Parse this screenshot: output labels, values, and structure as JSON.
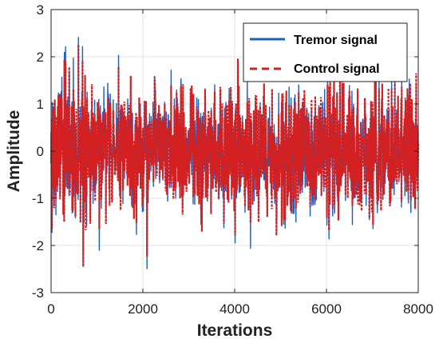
{
  "chart_data": {
    "type": "line",
    "title": "",
    "xlabel": "Iterations",
    "ylabel": "Amplitude",
    "xlim": [
      0,
      8000
    ],
    "ylim": [
      -3,
      3
    ],
    "xticks": [
      0,
      2000,
      4000,
      6000,
      8000
    ],
    "yticks": [
      -3,
      -2,
      -1,
      0,
      1,
      2,
      3
    ],
    "xtick_labels": [
      "0",
      "2000",
      "4000",
      "6000",
      "8000"
    ],
    "ytick_labels": [
      "-3",
      "-2",
      "-1",
      "0",
      "1",
      "2",
      "3"
    ],
    "grid": true,
    "legend_position": "top-right",
    "n_samples": 8000,
    "series": [
      {
        "name": "Tremor signal",
        "style": "solid",
        "color": "#1f5fbf",
        "typical_range": [
          -1.2,
          1.2
        ],
        "peak_max": 2.5,
        "peak_min": -2.5,
        "notes": "noisy oscillation over all iterations, larger excursions before ~700 iterations"
      },
      {
        "name": "Control signal",
        "style": "dashed",
        "color": "#d42020",
        "typical_range": [
          -1.2,
          1.2
        ],
        "peak_max": 2.7,
        "peak_min": -2.4,
        "notes": "tracks the tremor signal; dense red band from ~0 to 8000"
      }
    ]
  }
}
